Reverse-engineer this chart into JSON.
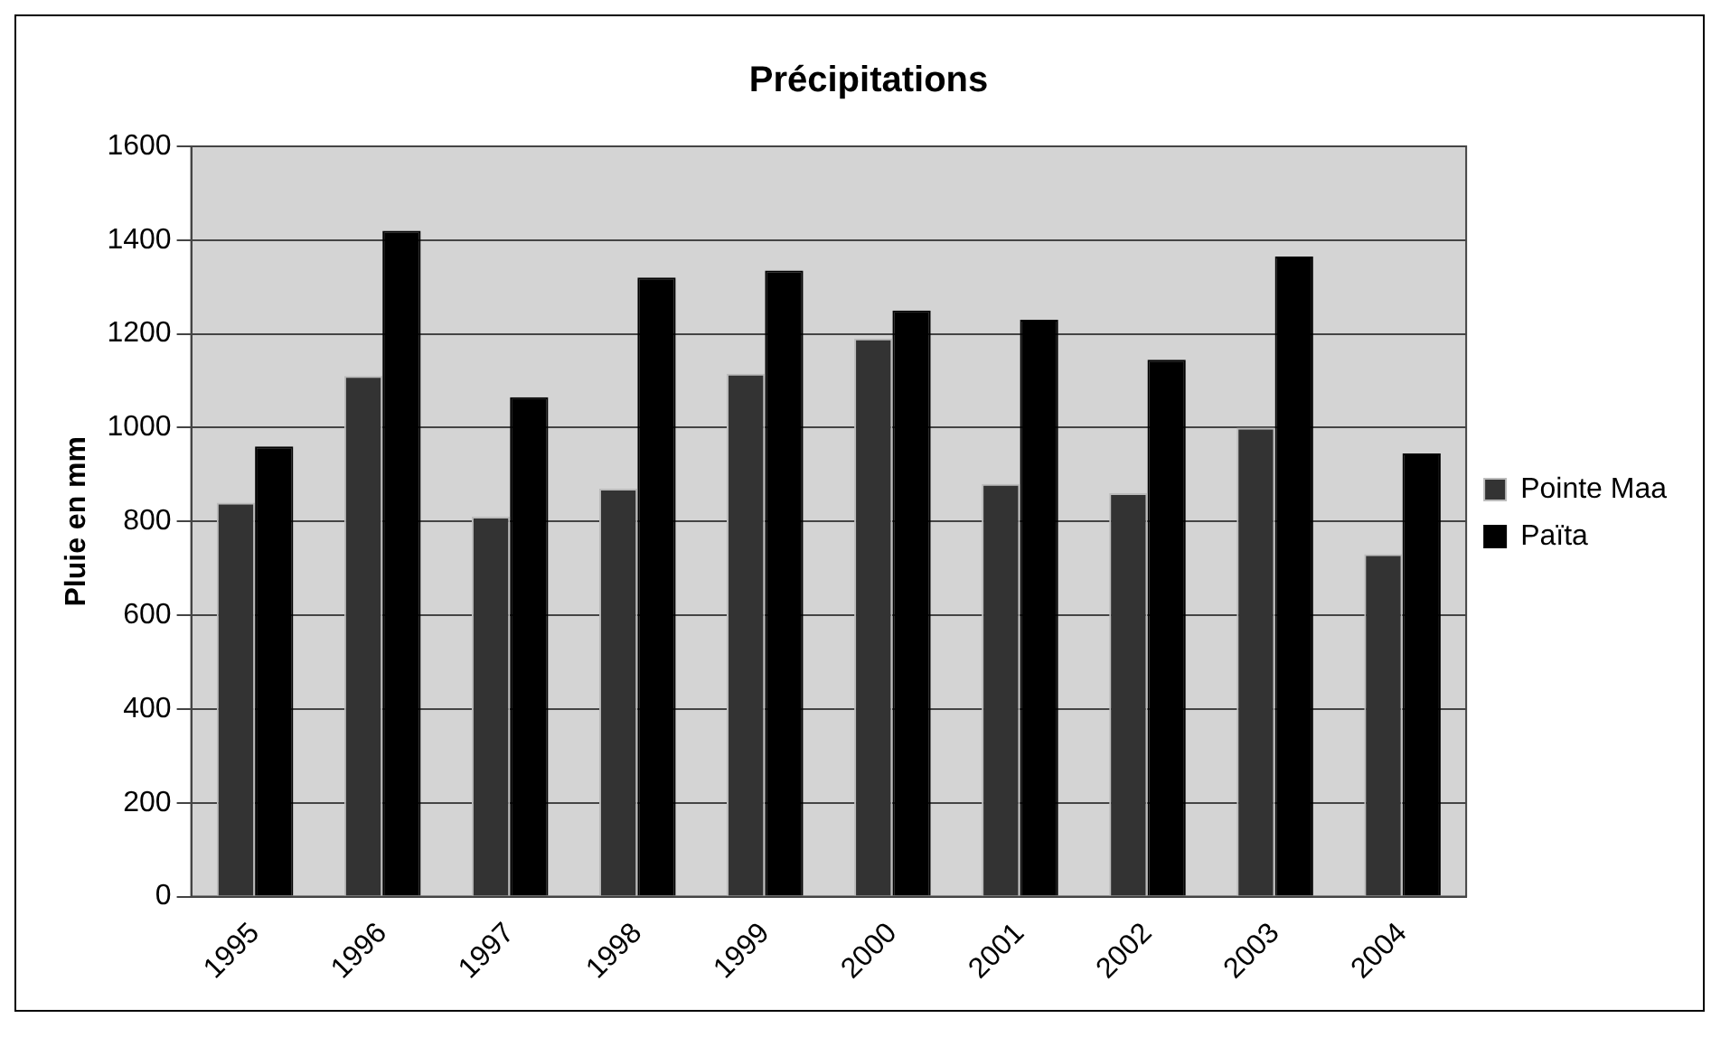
{
  "chart_data": {
    "type": "bar",
    "title": "Précipitations",
    "ylabel": "Pluie en mm",
    "categories": [
      "1995",
      "1996",
      "1997",
      "1998",
      "1999",
      "2000",
      "2001",
      "2002",
      "2003",
      "2004"
    ],
    "series": [
      {
        "name": "Pointe Maa",
        "color": "#333333",
        "values": [
          840,
          1110,
          810,
          870,
          1115,
          1190,
          880,
          860,
          1000,
          730
        ]
      },
      {
        "name": "Païta",
        "color": "#000000",
        "values": [
          960,
          1420,
          1065,
          1320,
          1335,
          1250,
          1230,
          1145,
          1365,
          945
        ]
      }
    ],
    "ylim": [
      0,
      1600
    ],
    "yticks": [
      0,
      200,
      400,
      600,
      800,
      1000,
      1200,
      1400,
      1600
    ],
    "grid": "y",
    "legend": "right"
  }
}
